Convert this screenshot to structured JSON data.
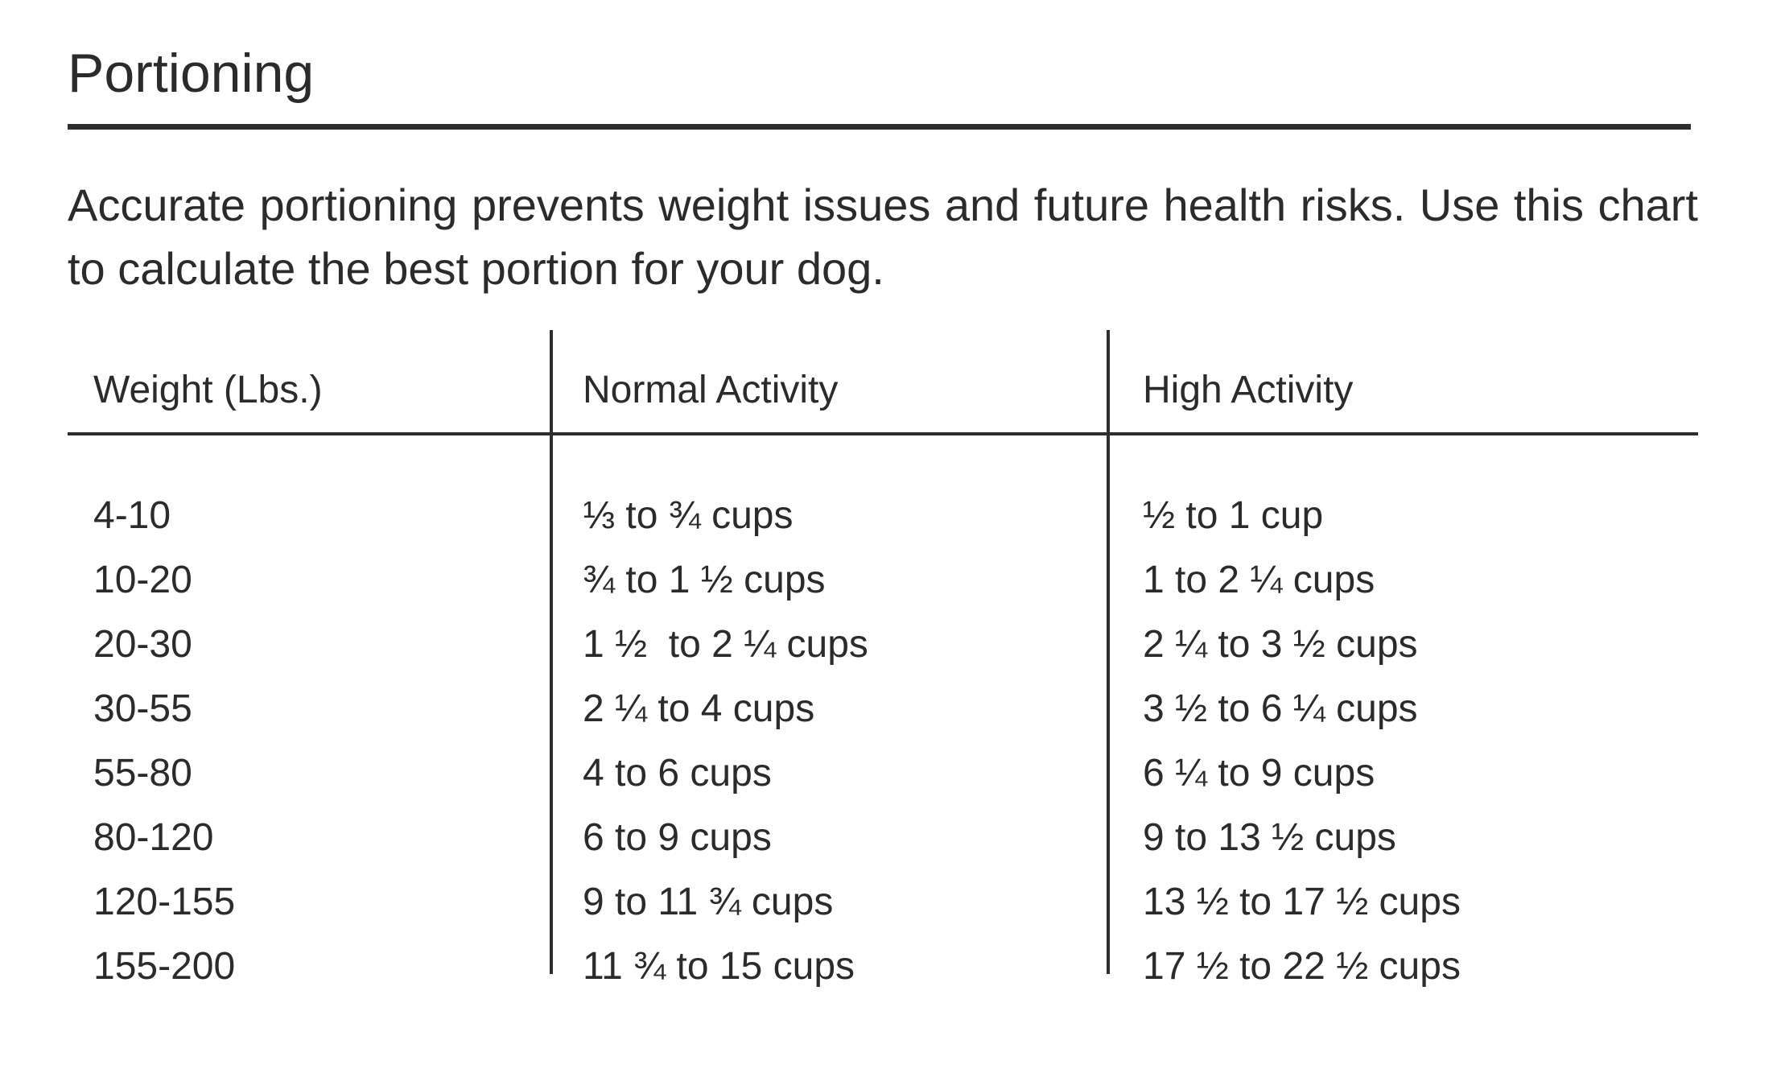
{
  "title": "Portioning",
  "intro": "Accurate portioning prevents weight issues and future health risks. Use this chart to calculate the best portion for your dog.",
  "table": {
    "headers": [
      "Weight (Lbs.)",
      "Normal Activity",
      "High Activity"
    ],
    "rows": [
      {
        "weight": "4-10",
        "normal": "⅓ to ¾ cups",
        "high": "½ to 1 cup"
      },
      {
        "weight": "10-20",
        "normal": "¾ to 1 ½ cups",
        "high": "1 to 2 ¼ cups"
      },
      {
        "weight": "20-30",
        "normal": "1 ½  to 2 ¼ cups",
        "high": "2 ¼ to 3 ½ cups"
      },
      {
        "weight": "30-55",
        "normal": "2 ¼ to 4 cups",
        "high": "3 ½ to 6 ¼ cups"
      },
      {
        "weight": "55-80",
        "normal": "4 to 6 cups",
        "high": "6 ¼ to 9 cups"
      },
      {
        "weight": "80-120",
        "normal": "6 to 9 cups",
        "high": "9 to 13 ½ cups"
      },
      {
        "weight": "120-155",
        "normal": "9 to 11 ¾ cups",
        "high": "13 ½ to 17 ½ cups"
      },
      {
        "weight": "155-200",
        "normal": "11 ¾ to 15 cups",
        "high": "17 ½ to 22 ½ cups"
      }
    ]
  }
}
